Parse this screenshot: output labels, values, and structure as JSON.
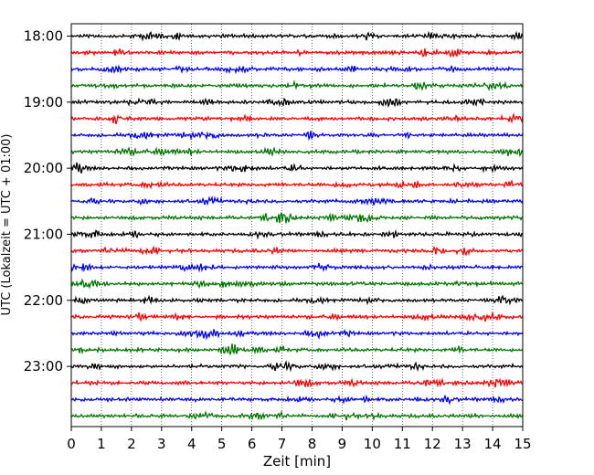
{
  "chart_data": {
    "type": "line",
    "title": "",
    "xlabel": "Zeit  [min]",
    "ylabel": "UTC (Lokalzeit = UTC + 01:00)",
    "xlim": [
      0,
      15
    ],
    "xticks": [
      0,
      1,
      2,
      3,
      4,
      5,
      6,
      7,
      8,
      9,
      10,
      11,
      12,
      13,
      14,
      15
    ],
    "xtick_labels": [
      "0",
      "1",
      "2",
      "3",
      "4",
      "5",
      "6",
      "7",
      "8",
      "9",
      "10",
      "11",
      "12",
      "13",
      "14",
      "15"
    ],
    "y_hour_labels": [
      "18:00",
      "19:00",
      "20:00",
      "21:00",
      "22:00",
      "23:00"
    ],
    "trace_interval_min": 15,
    "trace_count": 24,
    "trace_colors": [
      "#000000",
      "#ff0000",
      "#0000ff",
      "#007700"
    ],
    "grid": "vertical dotted at each minute",
    "legend": "none"
  }
}
